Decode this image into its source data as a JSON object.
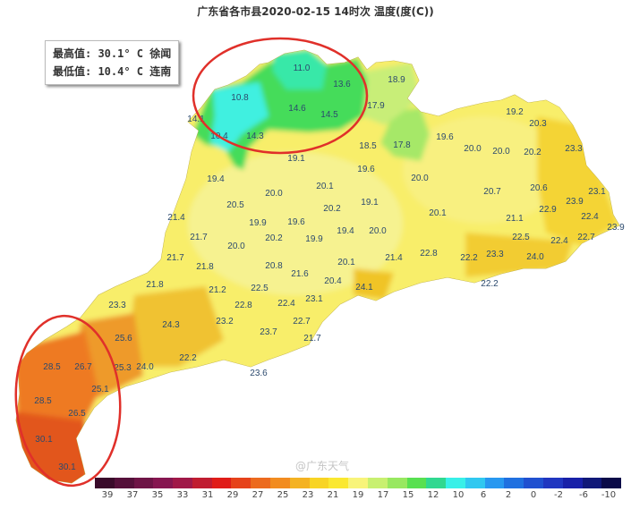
{
  "title": "广东省各市县2020-02-15 14时次 温度(度(C))",
  "stats": {
    "max_line": "最高值: 30.1° C 徐闻",
    "min_line": "最低值: 10.4° C 连南"
  },
  "watermark": "@广东天气",
  "annotations": {
    "circle_color": "#e0302a",
    "circled_regions": [
      "north",
      "southwest"
    ]
  },
  "colorbar": {
    "ticks": [
      "39",
      "37",
      "35",
      "33",
      "31",
      "29",
      "27",
      "25",
      "23",
      "21",
      "19",
      "17",
      "15",
      "12",
      "10",
      "6",
      "2",
      "0",
      "-2",
      "-6",
      "-10"
    ],
    "colors": [
      "#3a0a2a",
      "#55103a",
      "#6e1446",
      "#861650",
      "#a01848",
      "#c01c30",
      "#e01c18",
      "#e6421a",
      "#ec6a1e",
      "#f28c20",
      "#f4b222",
      "#f8d424",
      "#fae830",
      "#f8f47a",
      "#c8f070",
      "#98e860",
      "#58e050",
      "#30d890",
      "#38f0e8",
      "#30c8f0",
      "#2898f0",
      "#2070e0",
      "#2050d0",
      "#2036c0",
      "#1820a8",
      "#101878",
      "#0a0a48"
    ]
  },
  "labels": [
    "11.0",
    "13.6",
    "18.9",
    "10.8",
    "14.6",
    "14.5",
    "17.9",
    "14.1",
    "10.4",
    "14.3",
    "18.5",
    "17.8",
    "19.1",
    "19.6",
    "19.2",
    "20.3",
    "20.0",
    "20.0",
    "20.2",
    "23.3",
    "19.6",
    "19.4",
    "20.0",
    "20.1",
    "20.0",
    "20.7",
    "20.6",
    "23.1",
    "20.5",
    "20.2",
    "19.1",
    "23.9",
    "21.4",
    "19.9",
    "19.6",
    "20.1",
    "21.1",
    "22.9",
    "22.4",
    "23.9",
    "21.7",
    "20.0",
    "20.2",
    "19.9",
    "19.4",
    "20.0",
    "22.5",
    "22.4",
    "22.7",
    "21.7",
    "21.8",
    "20.8",
    "21.6",
    "21.4",
    "22.8",
    "22.2",
    "23.3",
    "24.0",
    "20.1",
    "20.4",
    "24.1",
    "22.2",
    "21.8",
    "21.2",
    "22.5",
    "23.1",
    "23.3",
    "22.8",
    "22.4",
    "24.3",
    "23.2",
    "22.7",
    "25.6",
    "23.7",
    "21.7",
    "22.2",
    "24.0",
    "28.5",
    "26.7",
    "25.3",
    "23.6",
    "25.1",
    "28.5",
    "26.5",
    "30.1",
    "30.1"
  ]
}
